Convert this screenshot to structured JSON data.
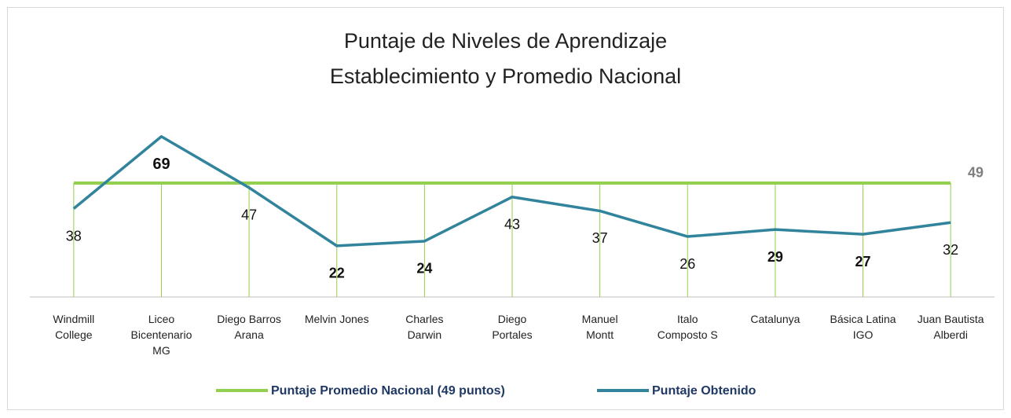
{
  "chart_data": {
    "type": "line",
    "title": "Puntaje de Niveles de Aprendizaje\nEstablecimiento y Promedio Nacional",
    "categories": [
      "Windmill\nCollege",
      "Liceo\nBicentenario\nMG",
      "Diego Barros\nArana",
      "Melvin Jones",
      "Charles\nDarwin",
      "Diego\nPortales",
      "Manuel\nMontt",
      "Italo\nComposto S",
      "Catalunya",
      "Básica Latina\nIGO",
      "Juan Bautista\nAlberdi"
    ],
    "ylim": [
      0,
      80
    ],
    "series": [
      {
        "name": "Puntaje Promedio Nacional (49 puntos)",
        "color": "#92d050",
        "values": [
          49,
          49,
          49,
          49,
          49,
          49,
          49,
          49,
          49,
          49,
          49
        ]
      },
      {
        "name": "Puntaje Obtenido",
        "color": "#31849b",
        "values": [
          38,
          69,
          47,
          22,
          24,
          43,
          37,
          26,
          29,
          27,
          32
        ]
      }
    ],
    "legend": "bottom"
  }
}
